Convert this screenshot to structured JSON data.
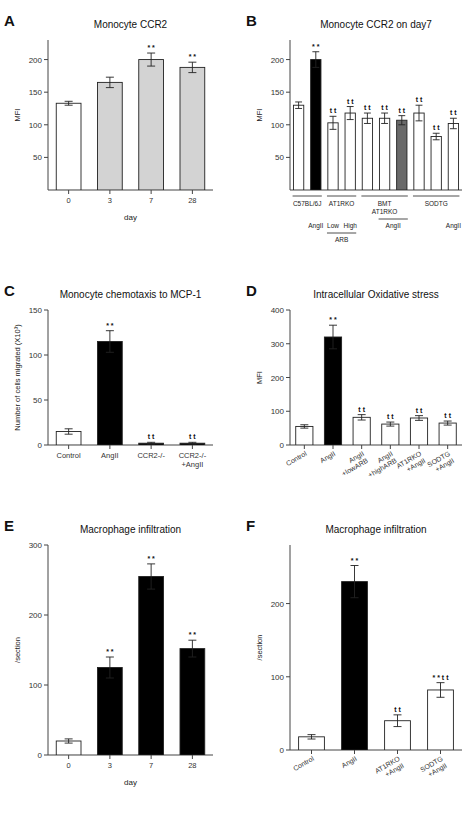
{
  "chart_data": [
    {
      "type": "bar",
      "panel": "A",
      "title": "Monocyte CCR2",
      "ylabel": "MFI",
      "xlabel": "day",
      "categories": [
        "0",
        "3",
        "7",
        "28"
      ],
      "values": [
        133,
        165,
        200,
        188
      ],
      "errors": [
        3,
        8,
        10,
        8
      ],
      "significance": [
        null,
        null,
        "* *",
        "* *"
      ],
      "colors": [
        "white",
        "lightgray",
        "lightgray",
        "lightgray"
      ],
      "ylim": [
        0,
        230
      ],
      "yticks": [
        50,
        100,
        150,
        200
      ]
    },
    {
      "type": "bar",
      "panel": "B",
      "title": "Monocyte CCR2 on day7",
      "ylabel": "MFI",
      "categories": [
        null,
        null,
        null,
        null,
        null,
        null,
        null,
        null,
        null,
        null
      ],
      "values": [
        130,
        200,
        103,
        118,
        110,
        110,
        107,
        118,
        82,
        102
      ],
      "errors": [
        5,
        12,
        10,
        10,
        8,
        8,
        7,
        12,
        5,
        8
      ],
      "significance": [
        null,
        "* *",
        "t t",
        "t t",
        "t t",
        "t t",
        "t t",
        "t t",
        "t t",
        "t t"
      ],
      "colors": [
        "white",
        "black",
        "white",
        "white",
        "white",
        "white",
        "dimgray",
        "white",
        "white",
        "white"
      ],
      "ylim": [
        0,
        230
      ],
      "yticks": [
        50,
        100,
        150,
        200
      ],
      "groups": [
        {
          "label": "C57BL/6J",
          "size": 2
        },
        {
          "label": "AT1RKO",
          "size": 2
        },
        {
          "label": "BMT\nAT1RKO",
          "size": 3
        },
        {
          "label": "SODTG",
          "size": 3
        }
      ],
      "sub_labels": [
        [
          {
            "label": "AngII",
            "first": 1,
            "last": 1
          },
          {
            "label": "Low",
            "first": 2,
            "last": 2
          },
          {
            "label": "High",
            "first": 3,
            "last": 3
          },
          {
            "label": "AngII",
            "first": 5,
            "last": 6
          },
          {
            "label": "AngII",
            "first": 9,
            "last": 9
          }
        ],
        [
          {
            "label": "ARB",
            "first": 2,
            "last": 3
          }
        ]
      ]
    },
    {
      "type": "bar",
      "panel": "C",
      "title": "Monocyte chemotaxis to MCP-1",
      "ylabel": "Number of cells migrated (X10³)",
      "categories": [
        "Control",
        "AngII",
        "CCR2-/-",
        "CCR2-/-\n+AngII"
      ],
      "values": [
        15,
        115,
        2,
        2
      ],
      "errors": [
        3,
        12,
        1,
        1
      ],
      "significance": [
        null,
        "* *",
        "t t",
        "t t"
      ],
      "colors": [
        "white",
        "black",
        "black",
        "black"
      ],
      "ylim": [
        0,
        150
      ],
      "yticks": [
        0,
        50,
        100,
        150
      ]
    },
    {
      "type": "bar",
      "panel": "D",
      "title": "Intracellular Oxidative stress",
      "ylabel": "MFI",
      "categories": [
        "Control",
        "AngII",
        "AngII\n+lowARB",
        "AngII\n+highARB",
        "AT1RKO\n+AngII",
        "SODTG\n+AngII"
      ],
      "values": [
        55,
        320,
        82,
        62,
        80,
        65
      ],
      "errors": [
        5,
        35,
        8,
        6,
        7,
        6
      ],
      "significance": [
        null,
        "* *",
        "t t",
        "t t",
        "t t",
        "t t"
      ],
      "colors": [
        "white",
        "black",
        "white",
        "white",
        "white",
        "white"
      ],
      "ylim": [
        0,
        400
      ],
      "yticks": [
        0,
        100,
        200,
        300,
        400
      ]
    },
    {
      "type": "bar",
      "panel": "E",
      "title": "Macrophage infiltration",
      "ylabel": "/section",
      "xlabel": "day",
      "categories": [
        "0",
        "3",
        "7",
        "28"
      ],
      "values": [
        20,
        125,
        255,
        152
      ],
      "errors": [
        3,
        15,
        18,
        12
      ],
      "significance": [
        null,
        "* *",
        "* *",
        "* *"
      ],
      "colors": [
        "white",
        "black",
        "black",
        "black"
      ],
      "ylim": [
        0,
        300
      ],
      "yticks": [
        0,
        100,
        200,
        300
      ]
    },
    {
      "type": "bar",
      "panel": "F",
      "title": "Macrophage infiltration",
      "ylabel": "/section",
      "categories": [
        "Control",
        "AngII",
        "AT1RKO\n+AngII",
        "SODTG\n+AngII"
      ],
      "values": [
        18,
        230,
        40,
        82
      ],
      "errors": [
        3,
        22,
        8,
        10
      ],
      "significance": [
        null,
        "* *",
        "t t",
        "* * t t"
      ],
      "colors": [
        "white",
        "black",
        "white",
        "white"
      ],
      "ylim": [
        0,
        280
      ],
      "yticks": [
        0,
        100,
        200
      ]
    }
  ]
}
